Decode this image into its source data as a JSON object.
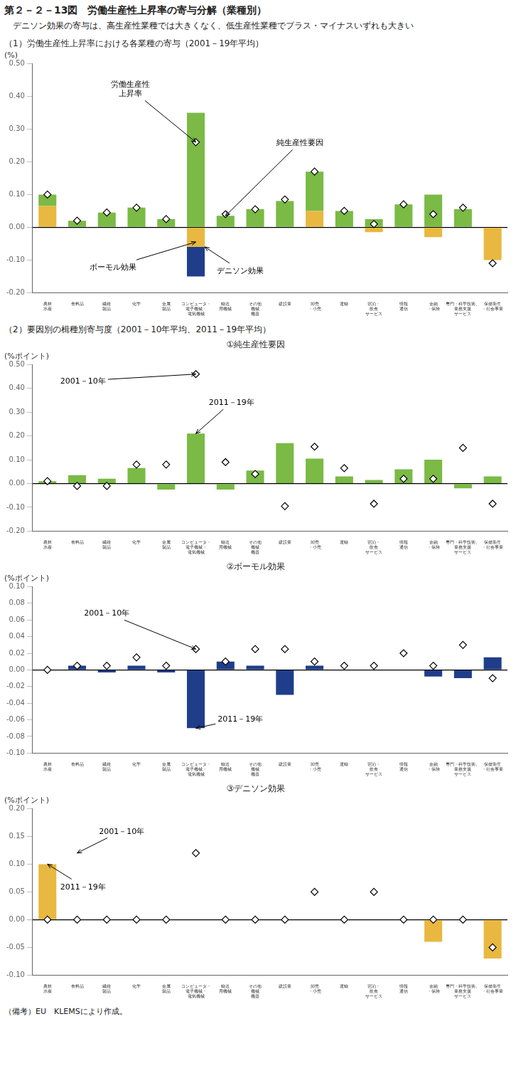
{
  "title": "第２－２－13図　労働生産性上昇率の寄与分解（業種別）",
  "subtitle": "デニソン効果の寄与は、高生産性業種では大きくなく、低生産性業種でプラス・マイナスいずれも大きい",
  "note": "（備考）EU　KLEMSにより作成。",
  "chart_data": [
    {
      "type": "bar",
      "title": "（1）労働生産性上昇率における各業種の寄与（2001－19年平均）",
      "ylabel": "(%)",
      "categories": [
        "農林\n水産",
        "食料品",
        "繊維\n製品",
        "化学",
        "金属\n製品",
        "コンピュータ・\n電子機械・\n電気機械",
        "輸送\n用機械",
        "その他\n機械\n機器",
        "建設業",
        "卸売\n・小売",
        "運輸",
        "宿泊・\n飲食\nサービス",
        "情報\n通信",
        "金融\n・保険",
        "専門・科学技術、\n業務支援\nサービス",
        "保健衛生\n・社会事業"
      ],
      "stacked": true,
      "grid": false,
      "series": [
        {
          "type": "bar",
          "color": "#7aba45",
          "values": [
            0.035,
            0.02,
            0.045,
            0.06,
            0.025,
            0.35,
            0.035,
            0.055,
            0.08,
            0.12,
            0.05,
            0.025,
            0.07,
            0.1,
            0.055,
            0.0
          ]
        },
        {
          "type": "bar",
          "color": "#1f3d8a",
          "values": [
            0.0,
            0.0,
            0.0,
            0.0,
            0.0,
            -0.09,
            0.0,
            0.0,
            0.0,
            0.0,
            0.0,
            0.0,
            0.0,
            0.0,
            0.0,
            0.0
          ]
        },
        {
          "type": "bar",
          "color": "#e8b840",
          "values": [
            0.065,
            0.0,
            0.0,
            0.0,
            0.0,
            -0.06,
            0.0,
            0.0,
            0.0,
            0.05,
            0.0,
            -0.015,
            0.0,
            -0.03,
            0.0,
            -0.1
          ]
        },
        {
          "type": "scatter",
          "marker": "diamond",
          "color": "#000000",
          "values": [
            0.1,
            0.02,
            0.045,
            0.06,
            0.025,
            0.26,
            0.04,
            0.055,
            0.085,
            0.17,
            0.05,
            0.01,
            0.07,
            0.04,
            0.06,
            -0.11
          ]
        }
      ],
      "ylim": [
        -0.2,
        0.5
      ],
      "yticks": [
        {
          "value": -0.2,
          "label": "-0.20"
        },
        {
          "value": -0.1,
          "label": "-0.10"
        },
        {
          "value": 0,
          "label": "0.00"
        },
        {
          "value": 0.1,
          "label": "0.10"
        },
        {
          "value": 0.2,
          "label": "0.20"
        },
        {
          "value": 0.3,
          "label": "0.30"
        },
        {
          "value": 0.4,
          "label": "0.40"
        },
        {
          "value": 0.5,
          "label": "0.50"
        }
      ],
      "annotations": [
        {
          "text": "労働生産性\n上昇率",
          "xy": [
            5,
            0.26
          ],
          "xytext": [
            2.8,
            0.4
          ]
        },
        {
          "text": "純生産性要因",
          "xy": [
            6,
            0.035
          ],
          "xytext": [
            8.5,
            0.25
          ]
        },
        {
          "text": "ボーモル効果",
          "xy": [
            5,
            -0.045
          ],
          "xytext": [
            2.2,
            -0.13
          ]
        },
        {
          "text": "デニソン効果",
          "xy": [
            5.3,
            -0.06
          ],
          "xytext": [
            6.5,
            -0.14
          ]
        }
      ]
    },
    {
      "type": "bar",
      "heading": "（2）要因別の楫種別寄与度（2001－10年平均、2011－19年平均）",
      "title": "①純生産性要因",
      "ylabel": "(%ポイント)",
      "categories": [
        "農林\n水産",
        "食料品",
        "繊維\n製品",
        "化学",
        "金属\n製品",
        "コンピュータ・\n電子機械・\n電気機械",
        "輸送\n用機械",
        "その他\n機械\n機器",
        "建設業",
        "卸売\n・小売",
        "運輸",
        "宿泊・\n飲食\nサービス",
        "情報\n通信",
        "金融\n・保険",
        "専門・科学技術、\n業務支援\nサービス",
        "保健衛生\n・社会事業"
      ],
      "grid": false,
      "series": [
        {
          "type": "bar",
          "color": "#7aba45",
          "values": [
            0.01,
            0.035,
            0.02,
            0.065,
            -0.025,
            0.21,
            -0.025,
            0.055,
            0.17,
            0.105,
            0.03,
            0.015,
            0.06,
            0.1,
            -0.02,
            0.03
          ]
        },
        {
          "type": "scatter",
          "marker": "diamond",
          "color": "#000000",
          "values": [
            0.01,
            -0.01,
            -0.01,
            0.08,
            0.08,
            0.46,
            0.09,
            0.04,
            -0.095,
            0.155,
            0.065,
            -0.085,
            0.02,
            0.02,
            0.15,
            -0.085
          ]
        }
      ],
      "ylim": [
        -0.2,
        0.5
      ],
      "yticks": [
        {
          "value": -0.2,
          "label": "-0.20"
        },
        {
          "value": -0.1,
          "label": "-0.10"
        },
        {
          "value": 0,
          "label": "0.00"
        },
        {
          "value": 0.1,
          "label": "0.10"
        },
        {
          "value": 0.2,
          "label": "0.20"
        },
        {
          "value": 0.3,
          "label": "0.30"
        },
        {
          "value": 0.4,
          "label": "0.40"
        },
        {
          "value": 0.5,
          "label": "0.50"
        }
      ],
      "annotations": [
        {
          "text": "2001－10年",
          "xy": [
            5,
            0.46
          ],
          "xytext": [
            1.2,
            0.42
          ]
        },
        {
          "text": "2011－19年",
          "xy": [
            5,
            0.21
          ],
          "xytext": [
            6.2,
            0.33
          ]
        }
      ]
    },
    {
      "type": "bar",
      "title": "②ボーモル効果",
      "ylabel": "(%ポイント)",
      "categories": [
        "農林\n水産",
        "食料品",
        "繊維\n製品",
        "化学",
        "金属\n製品",
        "コンピュータ・\n電子機械・\n電気機械",
        "輸送\n用機械",
        "その他\n機械\n機器",
        "建設業",
        "卸売\n・小売",
        "運輸",
        "宿泊・\n飲食\nサービス",
        "情報\n通信",
        "金融\n・保険",
        "専門・科学技術、\n業務支援\nサービス",
        "保健衛生\n・社会事業"
      ],
      "grid": false,
      "series": [
        {
          "type": "bar",
          "color": "#1f3d8a",
          "values": [
            0.0,
            0.005,
            -0.003,
            0.005,
            -0.003,
            -0.07,
            0.01,
            0.005,
            -0.03,
            0.005,
            0.0,
            0.0,
            0.0,
            -0.008,
            -0.01,
            0.015
          ]
        },
        {
          "type": "scatter",
          "marker": "diamond",
          "color": "#000000",
          "values": [
            0.0,
            0.005,
            0.005,
            0.015,
            0.005,
            0.025,
            0.01,
            0.025,
            0.025,
            0.01,
            0.005,
            0.005,
            0.02,
            0.005,
            0.03,
            -0.01
          ]
        }
      ],
      "ylim": [
        -0.1,
        0.1
      ],
      "yticks": [
        {
          "value": -0.1,
          "label": "-0.10"
        },
        {
          "value": -0.08,
          "label": "-0.08"
        },
        {
          "value": -0.06,
          "label": "-0.06"
        },
        {
          "value": -0.04,
          "label": "-0.04"
        },
        {
          "value": -0.02,
          "label": "-0.02"
        },
        {
          "value": 0,
          "label": "0.00"
        },
        {
          "value": 0.02,
          "label": "0.02"
        },
        {
          "value": 0.04,
          "label": "0.04"
        },
        {
          "value": 0.06,
          "label": "0.06"
        },
        {
          "value": 0.08,
          "label": "0.08"
        },
        {
          "value": 0.1,
          "label": "0.10"
        }
      ],
      "annotations": [
        {
          "text": "2001－10年",
          "xy": [
            5,
            0.025
          ],
          "xytext": [
            2.0,
            0.065
          ]
        },
        {
          "text": "2011－19年",
          "xy": [
            5,
            -0.07
          ],
          "xytext": [
            6.5,
            -0.062
          ]
        }
      ]
    },
    {
      "type": "bar",
      "title": "③デニソン効果",
      "ylabel": "(%ポイント)",
      "categories": [
        "農林\n水産",
        "食料品",
        "繊維\n製品",
        "化学",
        "金属\n製品",
        "コンピュータ・\n電子機械・\n電気機械",
        "輸送\n用機械",
        "その他\n機械\n機器",
        "建設業",
        "卸売\n・小売",
        "運輸",
        "宿泊・\n飲食\nサービス",
        "情報\n通信",
        "金融\n・保険",
        "専門・科学技術、\n業務支援\nサービス",
        "保健衛生\n・社会事業"
      ],
      "grid": false,
      "series": [
        {
          "type": "bar",
          "color": "#e8b840",
          "values": [
            0.1,
            0.0,
            0.0,
            0.0,
            0.0,
            0.0,
            0.0,
            0.0,
            0.0,
            0.0,
            0.0,
            0.0,
            0.0,
            -0.04,
            0.0,
            -0.07
          ]
        },
        {
          "type": "scatter",
          "marker": "diamond",
          "color": "#000000",
          "values": [
            0.0,
            0.0,
            0.0,
            0.0,
            0.0,
            0.12,
            0.0,
            0.0,
            0.0,
            0.05,
            0.0,
            0.05,
            0.0,
            0.0,
            0.0,
            -0.05
          ]
        }
      ],
      "ylim": [
        -0.1,
        0.2
      ],
      "yticks": [
        {
          "value": -0.1,
          "label": "-0.10"
        },
        {
          "value": -0.05,
          "label": "-0.05"
        },
        {
          "value": 0,
          "label": "0.00"
        },
        {
          "value": 0.05,
          "label": "0.05"
        },
        {
          "value": 0.1,
          "label": "0.10"
        },
        {
          "value": 0.15,
          "label": "0.15"
        },
        {
          "value": 0.2,
          "label": "0.20"
        }
      ],
      "annotations": [
        {
          "text": "2001－10年",
          "xy": [
            1,
            0.12
          ],
          "xytext": [
            2.5,
            0.155
          ]
        },
        {
          "text": "2011－19年",
          "xy": [
            0,
            0.1
          ],
          "xytext": [
            1.2,
            0.055
          ]
        }
      ]
    }
  ]
}
